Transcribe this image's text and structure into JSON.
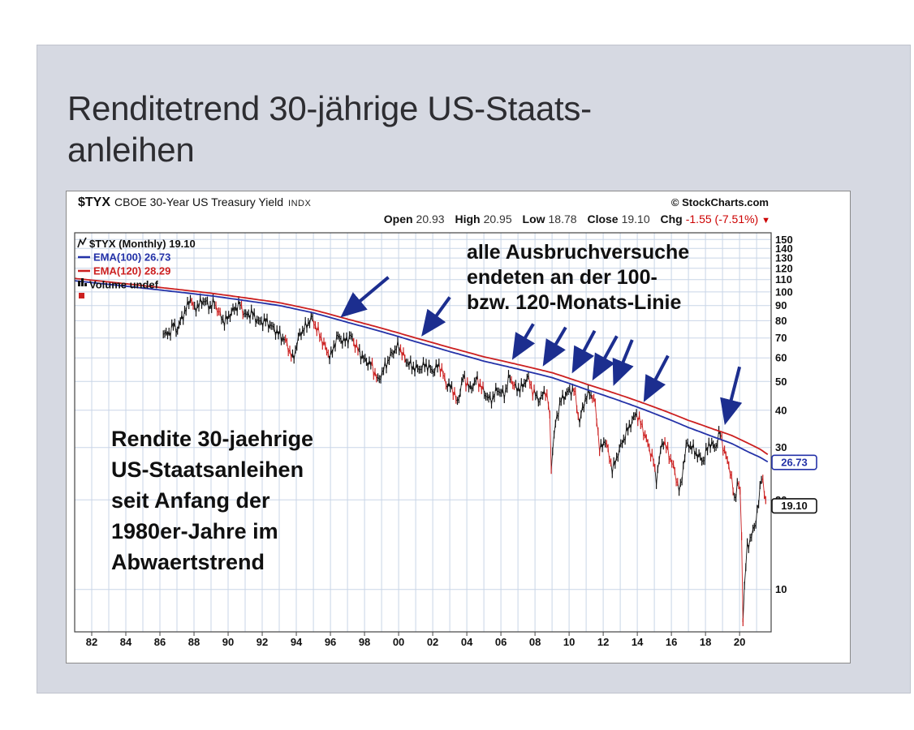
{
  "card": {
    "title_line1": "Renditetrend 30-jährige US-Staats-",
    "title_line2": "anleihen"
  },
  "chart": {
    "symbol": "$TYX",
    "name": "CBOE 30-Year US Treasury Yield",
    "exchange": "INDX",
    "copyright": "© StockCharts.com",
    "ohlc": {
      "open_label": "Open",
      "open": "20.93",
      "high_label": "High",
      "high": "20.95",
      "low_label": "Low",
      "low": "18.78",
      "close_label": "Close",
      "close": "19.10",
      "chg_label": "Chg",
      "chg": "-1.55 (-7.51%)",
      "chg_triangle": "▼"
    },
    "legend": {
      "main": "$TYX (Monthly) 19.10",
      "ema100": "EMA(100) 26.73",
      "ema120": "EMA(120) 28.29",
      "volume": "Volume undef"
    },
    "annotation_right": [
      "alle Ausbruchversuche",
      "endeten an der 100-",
      "bzw. 120-Monats-Linie"
    ],
    "annotation_left": [
      "Rendite 30-jaehrige",
      "US-Staatsanleihen",
      "seit Anfang der",
      "1980er-Jahre im",
      "Abwaertstrend"
    ],
    "price_labels": {
      "ema100_box": "26.73",
      "close_box": "19.10"
    },
    "colors": {
      "ema100": "#2432a8",
      "ema120": "#cc2020",
      "bars": "#111111",
      "bars_down": "#cc2020",
      "arrow": "#1c2e8f",
      "grid": "#c9d5e7",
      "chg": "#cc0000"
    }
  },
  "chart_data": {
    "type": "line",
    "title": "$TYX CBOE 30-Year US Treasury Yield (Monthly)",
    "y_scale": "log",
    "grid": true,
    "legend_position": "top-left",
    "x_range": [
      1981,
      2021.85
    ],
    "y_range": [
      7.2,
      158
    ],
    "x_ticks": [
      "82",
      "84",
      "86",
      "88",
      "90",
      "92",
      "94",
      "96",
      "98",
      "00",
      "02",
      "04",
      "06",
      "08",
      "10",
      "12",
      "14",
      "16",
      "18",
      "20"
    ],
    "y_ticks": [
      150,
      140,
      130,
      120,
      110,
      100,
      90,
      80,
      70,
      60,
      50,
      40,
      30,
      20,
      10
    ],
    "series": [
      {
        "name": "$TYX close (yield x10)",
        "color": "#111111",
        "points": [
          [
            1986.2,
            74
          ],
          [
            1986.5,
            71
          ],
          [
            1986.75,
            78
          ],
          [
            1987.0,
            74
          ],
          [
            1987.3,
            82
          ],
          [
            1987.6,
            89
          ],
          [
            1987.8,
            96
          ],
          [
            1988.0,
            87
          ],
          [
            1988.3,
            91
          ],
          [
            1988.6,
            94
          ],
          [
            1988.9,
            89
          ],
          [
            1989.2,
            92
          ],
          [
            1989.5,
            84
          ],
          [
            1989.8,
            79
          ],
          [
            1990.1,
            84
          ],
          [
            1990.4,
            88
          ],
          [
            1990.7,
            91
          ],
          [
            1991.0,
            83
          ],
          [
            1991.4,
            85
          ],
          [
            1991.8,
            79
          ],
          [
            1992.2,
            80
          ],
          [
            1992.6,
            76
          ],
          [
            1993.0,
            72
          ],
          [
            1993.4,
            68
          ],
          [
            1993.8,
            59
          ],
          [
            1994.2,
            72
          ],
          [
            1994.6,
            77
          ],
          [
            1994.9,
            82
          ],
          [
            1995.3,
            73
          ],
          [
            1995.7,
            65
          ],
          [
            1996.0,
            60
          ],
          [
            1996.4,
            71
          ],
          [
            1996.8,
            68
          ],
          [
            1997.2,
            71
          ],
          [
            1997.6,
            64
          ],
          [
            1998.0,
            59
          ],
          [
            1998.4,
            57
          ],
          [
            1998.8,
            50
          ],
          [
            1999.2,
            56
          ],
          [
            1999.6,
            62
          ],
          [
            2000.0,
            66
          ],
          [
            2000.4,
            59
          ],
          [
            2000.8,
            56
          ],
          [
            2001.2,
            55
          ],
          [
            2001.6,
            57
          ],
          [
            2002.0,
            54
          ],
          [
            2002.4,
            57
          ],
          [
            2002.8,
            49
          ],
          [
            2003.2,
            47
          ],
          [
            2003.45,
            42
          ],
          [
            2003.8,
            52
          ],
          [
            2004.2,
            47
          ],
          [
            2004.6,
            51
          ],
          [
            2005.0,
            46
          ],
          [
            2005.4,
            43
          ],
          [
            2005.8,
            47
          ],
          [
            2006.2,
            45
          ],
          [
            2006.5,
            52
          ],
          [
            2006.9,
            47
          ],
          [
            2007.3,
            48
          ],
          [
            2007.55,
            52
          ],
          [
            2007.9,
            46
          ],
          [
            2008.3,
            43
          ],
          [
            2008.6,
            47
          ],
          [
            2008.85,
            40
          ],
          [
            2008.95,
            26
          ],
          [
            2009.2,
            36
          ],
          [
            2009.5,
            43
          ],
          [
            2009.9,
            46
          ],
          [
            2010.3,
            47
          ],
          [
            2010.6,
            36
          ],
          [
            2010.9,
            43
          ],
          [
            2011.2,
            46
          ],
          [
            2011.5,
            43
          ],
          [
            2011.8,
            29
          ],
          [
            2012.1,
            32
          ],
          [
            2012.55,
            25
          ],
          [
            2012.9,
            29
          ],
          [
            2013.2,
            32
          ],
          [
            2013.6,
            36
          ],
          [
            2013.95,
            39
          ],
          [
            2014.3,
            35
          ],
          [
            2014.6,
            31
          ],
          [
            2014.95,
            27
          ],
          [
            2015.1,
            23
          ],
          [
            2015.5,
            32
          ],
          [
            2015.8,
            29
          ],
          [
            2016.1,
            26
          ],
          [
            2016.5,
            21
          ],
          [
            2016.9,
            31
          ],
          [
            2017.2,
            30
          ],
          [
            2017.6,
            28
          ],
          [
            2017.9,
            27
          ],
          [
            2018.2,
            31
          ],
          [
            2018.6,
            30
          ],
          [
            2018.85,
            34
          ],
          [
            2019.1,
            29
          ],
          [
            2019.4,
            26
          ],
          [
            2019.7,
            20
          ],
          [
            2019.9,
            23
          ],
          [
            2020.05,
            21
          ],
          [
            2020.2,
            8
          ],
          [
            2020.45,
            14
          ],
          [
            2020.7,
            15
          ],
          [
            2020.95,
            17
          ],
          [
            2021.15,
            20
          ],
          [
            2021.3,
            25
          ],
          [
            2021.45,
            21
          ],
          [
            2021.55,
            19.1
          ]
        ]
      },
      {
        "name": "EMA(100)",
        "color": "#2432a8",
        "points": [
          [
            1981.0,
            109
          ],
          [
            1983,
            106
          ],
          [
            1985,
            103
          ],
          [
            1987,
            100
          ],
          [
            1989,
            97
          ],
          [
            1991,
            93.5
          ],
          [
            1993,
            90
          ],
          [
            1995,
            85
          ],
          [
            1997,
            79
          ],
          [
            1999,
            73.5
          ],
          [
            2001,
            68
          ],
          [
            2003,
            63
          ],
          [
            2005,
            58.5
          ],
          [
            2007,
            55
          ],
          [
            2009,
            51.5
          ],
          [
            2011,
            47
          ],
          [
            2013,
            43
          ],
          [
            2015,
            39
          ],
          [
            2017,
            35
          ],
          [
            2018.5,
            32.5
          ],
          [
            2019.5,
            31
          ],
          [
            2020.5,
            29
          ],
          [
            2021.2,
            27.8
          ],
          [
            2021.7,
            26.73
          ]
        ]
      },
      {
        "name": "EMA(120)",
        "color": "#cc2020",
        "points": [
          [
            1981.0,
            111
          ],
          [
            1983,
            108
          ],
          [
            1985,
            105
          ],
          [
            1987,
            102
          ],
          [
            1989,
            99
          ],
          [
            1991,
            95.5
          ],
          [
            1993,
            92
          ],
          [
            1995,
            87
          ],
          [
            1997,
            81
          ],
          [
            1999,
            75.5
          ],
          [
            2001,
            70
          ],
          [
            2003,
            65
          ],
          [
            2005,
            60.5
          ],
          [
            2007,
            57
          ],
          [
            2009,
            53.5
          ],
          [
            2011,
            49
          ],
          [
            2013,
            45
          ],
          [
            2015,
            41
          ],
          [
            2017,
            37
          ],
          [
            2018.5,
            34.5
          ],
          [
            2019.5,
            33
          ],
          [
            2020.5,
            31
          ],
          [
            2021.2,
            29.6
          ],
          [
            2021.7,
            28.29
          ]
        ]
      }
    ],
    "arrows": [
      [
        1999.4,
        112,
        1996.8,
        84
      ],
      [
        2003.0,
        96,
        2001.5,
        73
      ],
      [
        2007.9,
        78,
        2006.8,
        61
      ],
      [
        2009.8,
        76,
        2008.6,
        58
      ],
      [
        2011.5,
        74,
        2010.3,
        55
      ],
      [
        2012.8,
        71,
        2011.5,
        52
      ],
      [
        2013.7,
        69,
        2012.7,
        50
      ],
      [
        2015.8,
        61,
        2014.5,
        44
      ],
      [
        2020.0,
        56,
        2019.2,
        37
      ]
    ]
  }
}
